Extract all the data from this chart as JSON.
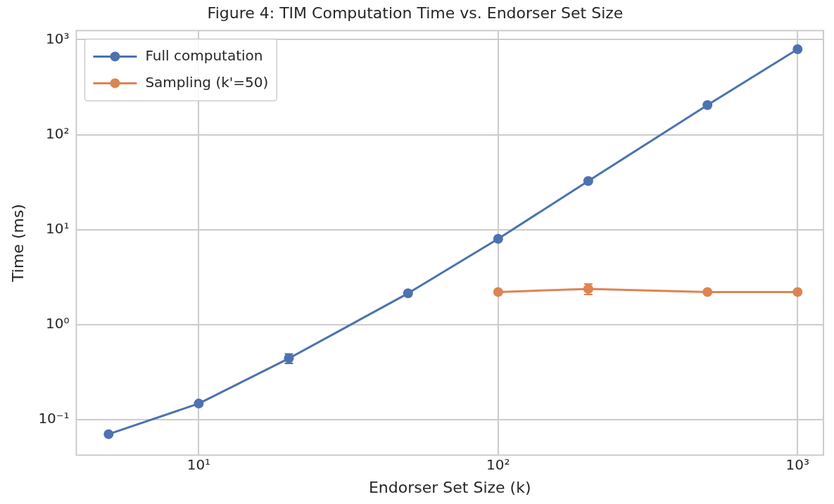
{
  "chart_data": {
    "type": "line",
    "title": "Figure 4: TIM Computation Time vs. Endorser Set Size",
    "xlabel": "Endorser Set Size (k)",
    "ylabel": "Time (ms)",
    "log": "xy",
    "grid": true,
    "legend": "top left",
    "marker": "circle",
    "line_style": "solid",
    "xlim": [
      3.9,
      1220
    ],
    "ylim": [
      0.042,
      1250
    ],
    "xticks": [
      {
        "value": 10,
        "label": "10¹"
      },
      {
        "value": 100,
        "label": "10²"
      },
      {
        "value": 1000,
        "label": "10³"
      }
    ],
    "yticks": [
      {
        "value": 0.1,
        "label": "10⁻¹"
      },
      {
        "value": 1,
        "label": "10⁰"
      },
      {
        "value": 10,
        "label": "10¹"
      },
      {
        "value": 100,
        "label": "10²"
      },
      {
        "value": 1000,
        "label": "10³"
      }
    ],
    "series": [
      {
        "name": "Full computation",
        "color": "#4c72b0",
        "x": [
          5,
          10,
          20,
          50,
          100,
          200,
          500,
          1000
        ],
        "values": [
          0.07,
          0.147,
          0.44,
          2.13,
          8.0,
          32.5,
          205,
          795
        ],
        "errors": [
          null,
          null,
          0.05,
          null,
          null,
          null,
          null,
          null
        ]
      },
      {
        "name": "Sampling (k'=50)",
        "color": "#dd8452",
        "x": [
          100,
          200,
          500,
          1000
        ],
        "values": [
          2.2,
          2.37,
          2.2,
          2.2
        ],
        "errors": [
          null,
          0.3,
          null,
          null
        ]
      }
    ]
  }
}
